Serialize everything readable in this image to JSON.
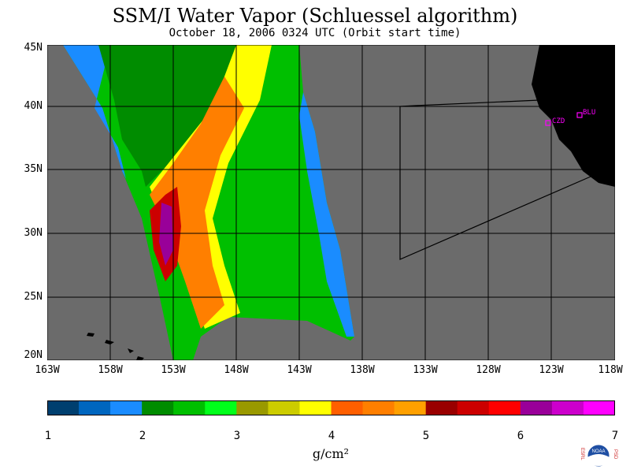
{
  "title": "SSM/I Water Vapor (Schluessel algorithm)",
  "subtitle": "October 18, 2006  0324 UTC  (Orbit start time)",
  "lat_labels": [
    "45N",
    "40N",
    "35N",
    "30N",
    "25N",
    "20N"
  ],
  "lon_labels": [
    "163W",
    "158W",
    "153W",
    "148W",
    "143W",
    "138W",
    "133W",
    "128W",
    "123W",
    "118W"
  ],
  "stations": [
    "CZD",
    "BLU"
  ],
  "colorbar": {
    "colors": [
      "#003f6f",
      "#0066bf",
      "#1a8cff",
      "#008c00",
      "#00bf00",
      "#00ff1a",
      "#999900",
      "#cccc00",
      "#ffff00",
      "#ff5f00",
      "#ff7f00",
      "#ffa000",
      "#990000",
      "#cc0000",
      "#ff0000",
      "#990099",
      "#cc00cc",
      "#ff00ff"
    ],
    "tick_labels": [
      "1",
      "2",
      "3",
      "4",
      "5",
      "6",
      "7"
    ],
    "units": "g/cm²"
  },
  "logo_text": {
    "left": "ESRL",
    "right": "PSD",
    "center": "NOAA"
  },
  "colors": {
    "background_gray": "#6b6b6b",
    "land": "#000000",
    "station": "#ff00ff"
  }
}
